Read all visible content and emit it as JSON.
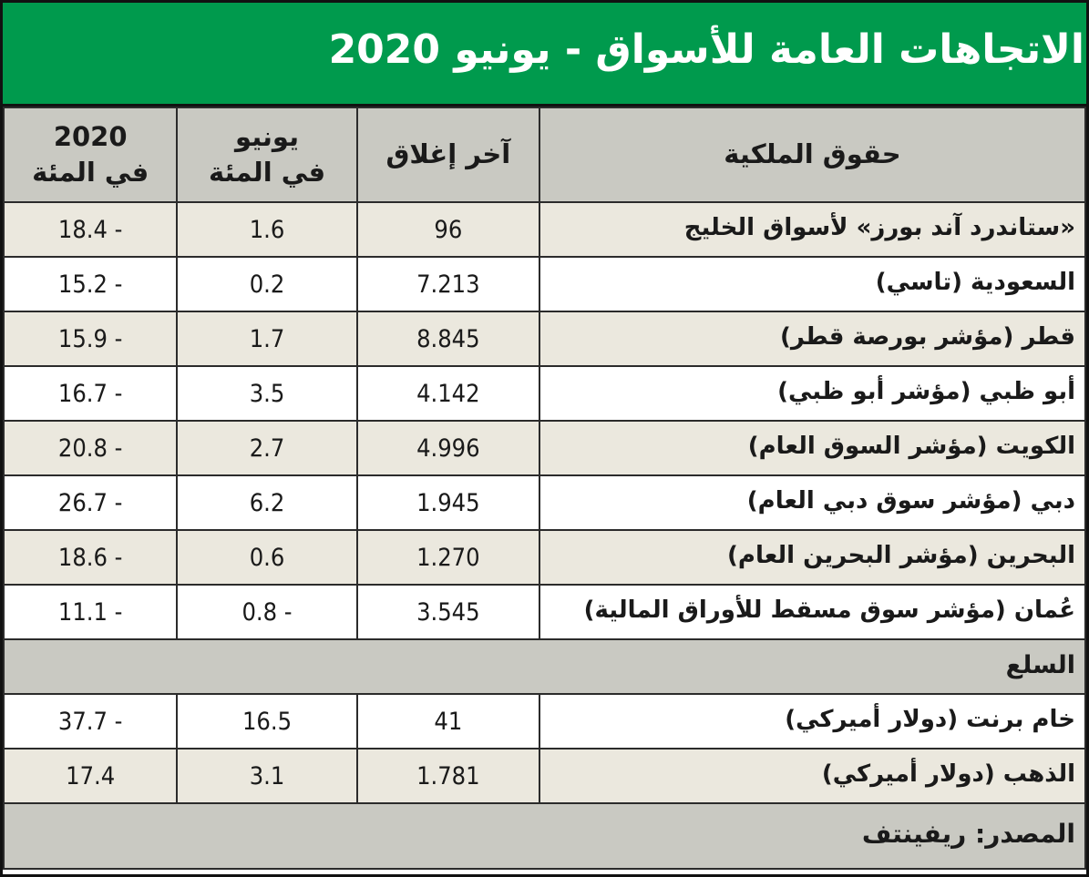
{
  "colors": {
    "title_bg": "#009a4d",
    "title_text": "#ffffff",
    "header_bg": "#c9c9c2",
    "row_alt_bg": "#ebe8de",
    "row_bg": "#ffffff",
    "border": "#2b2b2b",
    "text": "#1a1a1a"
  },
  "chart_data": {
    "type": "table",
    "title": "الاتجاهات العامة للأسواق - يونيو 2020",
    "header": {
      "equity": "حقوق الملكية",
      "last_close": "آخر إغلاق",
      "june": {
        "line1": "يونيو",
        "line2": "في المئة"
      },
      "ytd": {
        "line1": "2020",
        "line2": "في المئة"
      }
    },
    "equity_rows": [
      {
        "name": "«ستاندرد آند بورز» لأسواق الخليج",
        "last_close": "96",
        "june_pct": "1.6",
        "ytd_pct": "18.4 -"
      },
      {
        "name": "السعودية (تاسي)",
        "last_close": "7.213",
        "june_pct": "0.2",
        "ytd_pct": "15.2 -"
      },
      {
        "name": "قطر (مؤشر بورصة قطر)",
        "last_close": "8.845",
        "june_pct": "1.7",
        "ytd_pct": "15.9 -"
      },
      {
        "name": "أبو ظبي (مؤشر أبو ظبي)",
        "last_close": "4.142",
        "june_pct": "3.5",
        "ytd_pct": "16.7 -"
      },
      {
        "name": "الكويت (مؤشر السوق العام)",
        "last_close": "4.996",
        "june_pct": "2.7",
        "ytd_pct": "20.8 -"
      },
      {
        "name": "دبي (مؤشر سوق دبي العام)",
        "last_close": "1.945",
        "june_pct": "6.2",
        "ytd_pct": "26.7 -"
      },
      {
        "name": "البحرين (مؤشر البحرين العام)",
        "last_close": "1.270",
        "june_pct": "0.6",
        "ytd_pct": "18.6 -"
      },
      {
        "name": "عُمان (مؤشر سوق مسقط للأوراق المالية)",
        "last_close": "3.545",
        "june_pct": "0.8 -",
        "ytd_pct": "11.1 -"
      }
    ],
    "section_label": "السلع",
    "commodity_rows": [
      {
        "name": "خام برنت (دولار أميركي)",
        "last_close": "41",
        "june_pct": "16.5",
        "ytd_pct": "37.7 -"
      },
      {
        "name": "الذهب (دولار أميركي)",
        "last_close": "1.781",
        "june_pct": "3.1",
        "ytd_pct": "17.4"
      }
    ],
    "source": "المصدر: ريفينتف"
  }
}
